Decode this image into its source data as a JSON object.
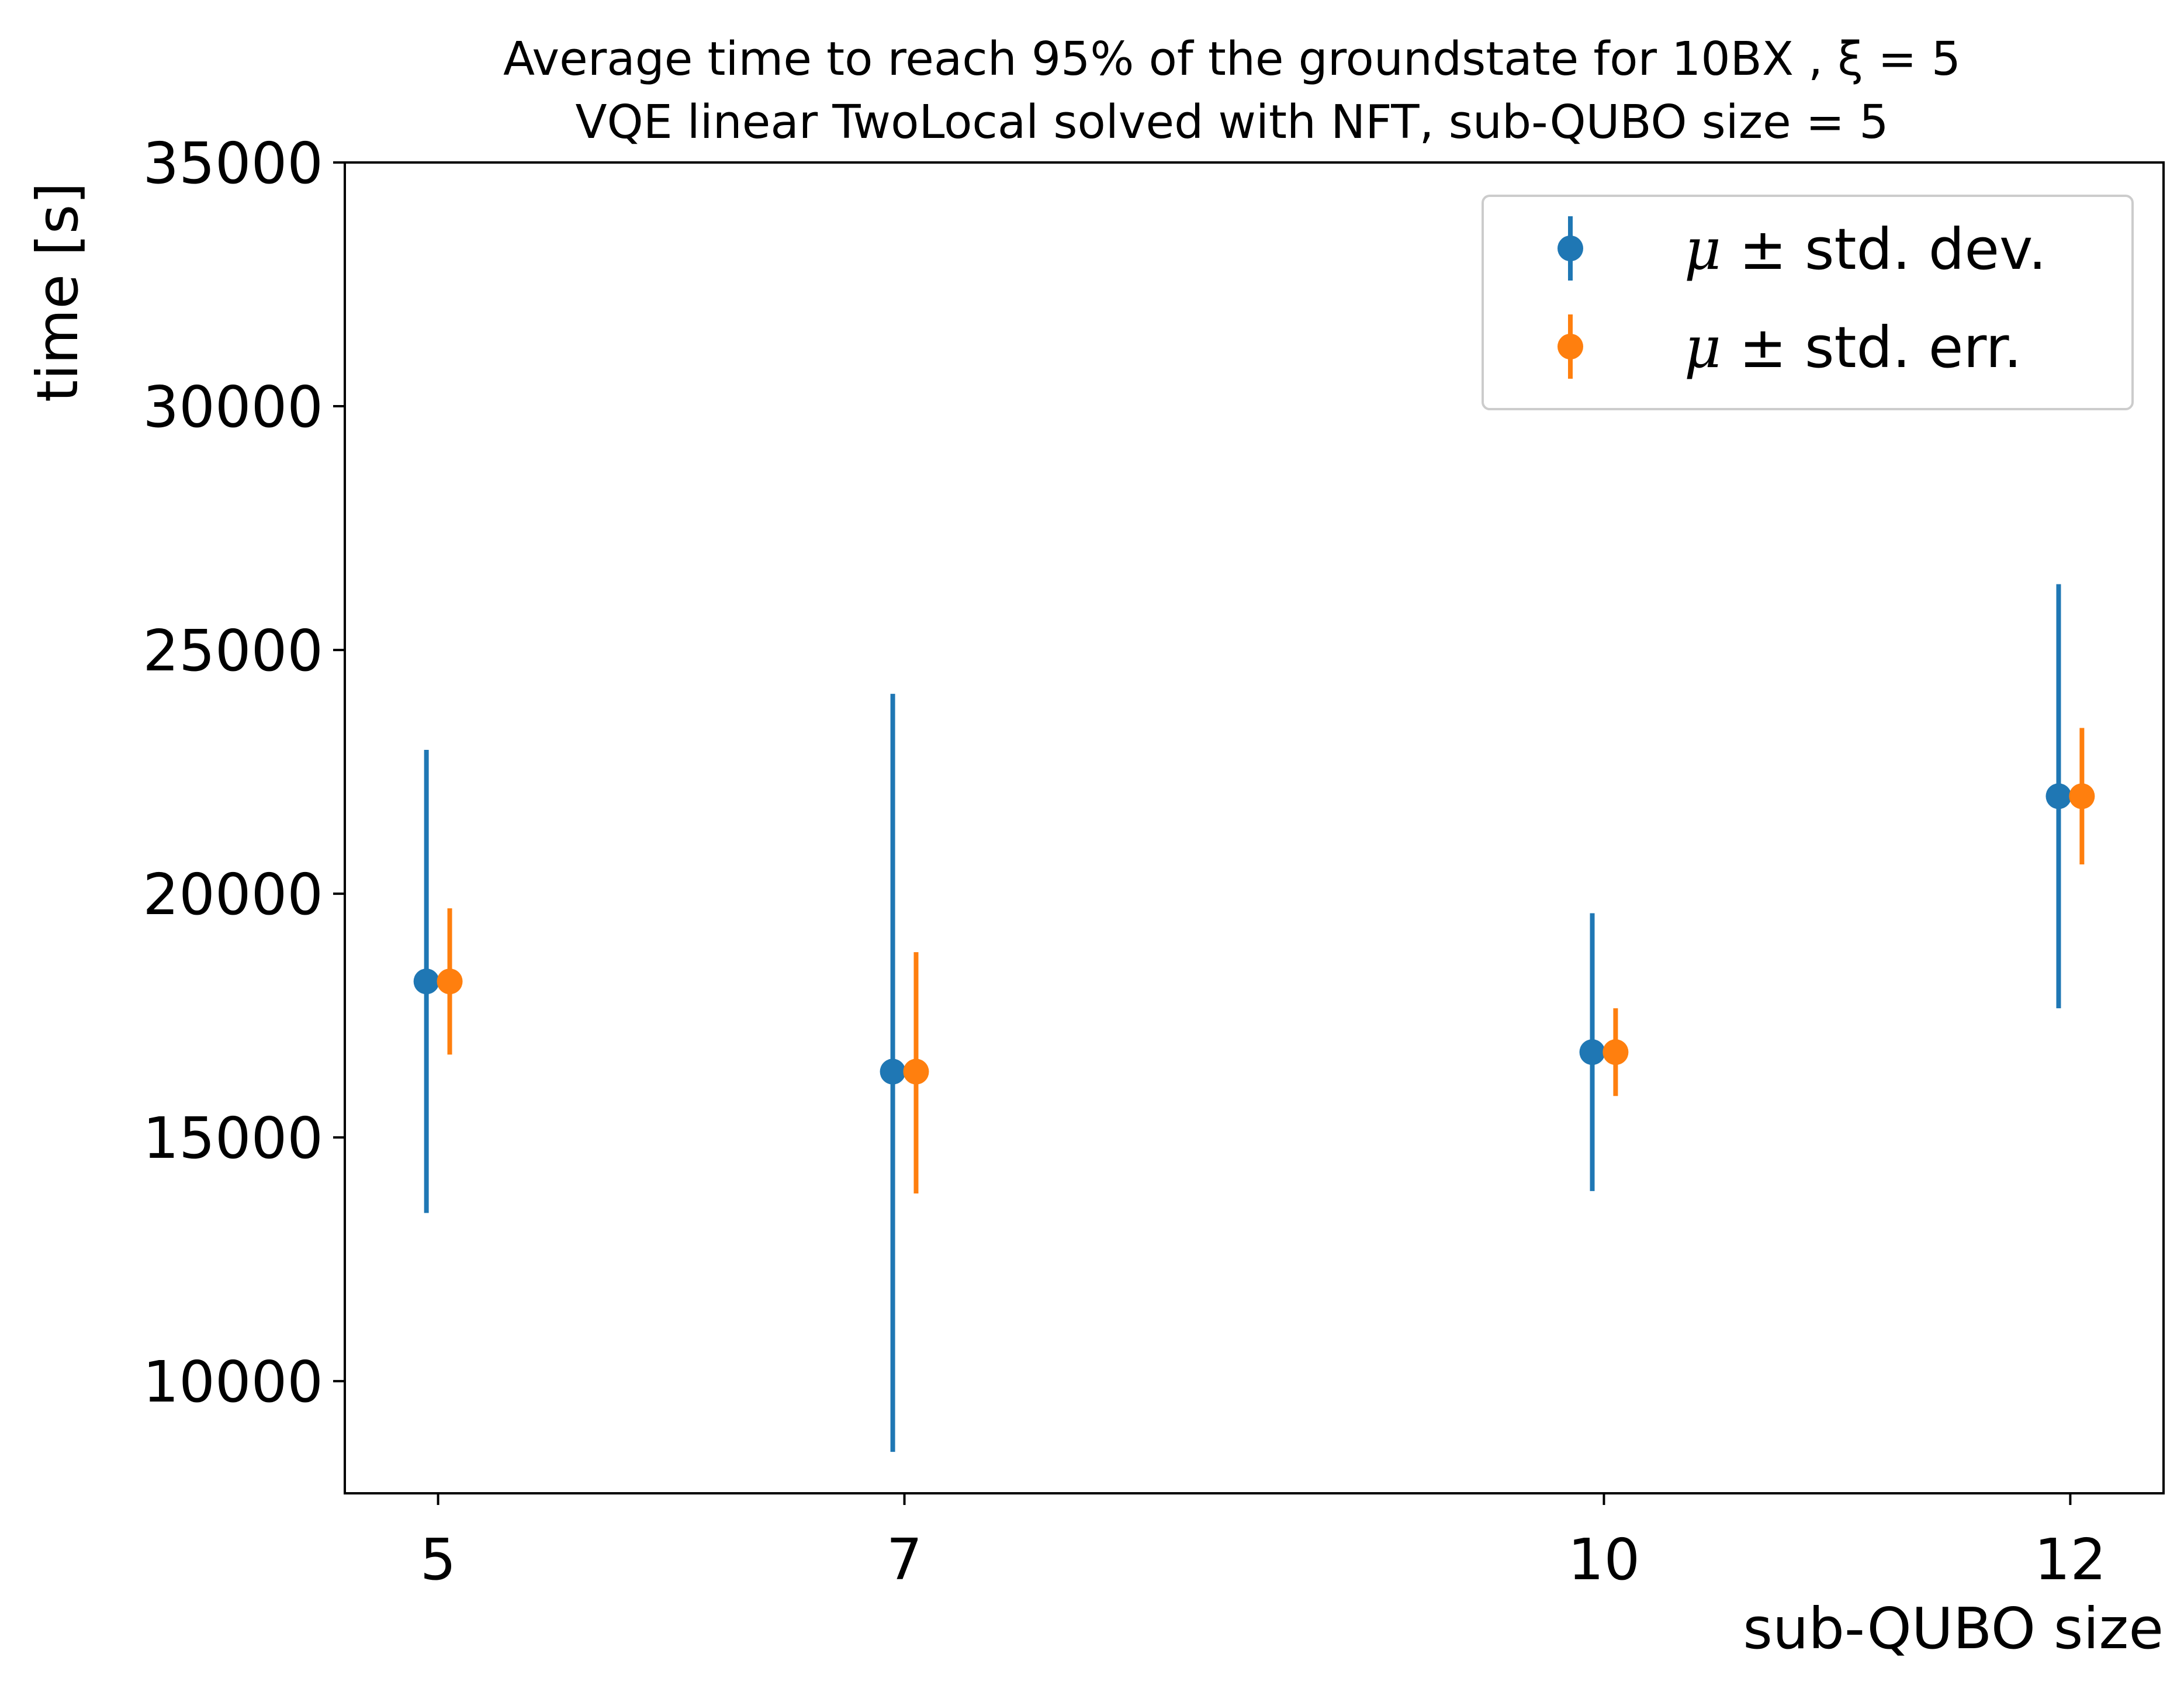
{
  "chart_data": {
    "type": "scatter",
    "title_lines": [
      "Average time to reach 95% of the groundstate for 10BX , ξ = 5",
      "VQE linear TwoLocal solved with NFT, sub-QUBO size = 5"
    ],
    "xlabel": "sub-QUBO size",
    "ylabel": "time [s]",
    "x": [
      5,
      7,
      10,
      12
    ],
    "x_ticks": [
      "5",
      "7",
      "10",
      "12"
    ],
    "y_ticks": [
      "10000",
      "15000",
      "20000",
      "25000",
      "30000",
      "35000"
    ],
    "xlim": [
      4.6,
      12.4
    ],
    "ylim": [
      7700,
      35000
    ],
    "grid": false,
    "legend_position": "top-right",
    "series": [
      {
        "name": "μ ± std. dev.",
        "legend_symbol": "μ",
        "legend_rest": " ± std. dev.",
        "color": "#1f77b4",
        "x_offset": -0.05,
        "values": [
          18200,
          16350,
          16750,
          22000
        ],
        "err_low": [
          13450,
          8550,
          13900,
          17650
        ],
        "err_high": [
          22950,
          24100,
          19600,
          26350
        ]
      },
      {
        "name": "μ ± std. err.",
        "legend_symbol": "μ",
        "legend_rest": " ± std. err.",
        "color": "#ff7f0e",
        "x_offset": 0.05,
        "values": [
          18200,
          16350,
          16750,
          22000
        ],
        "err_low": [
          16700,
          13850,
          15850,
          20600
        ],
        "err_high": [
          19700,
          18800,
          17650,
          23400
        ]
      }
    ]
  }
}
